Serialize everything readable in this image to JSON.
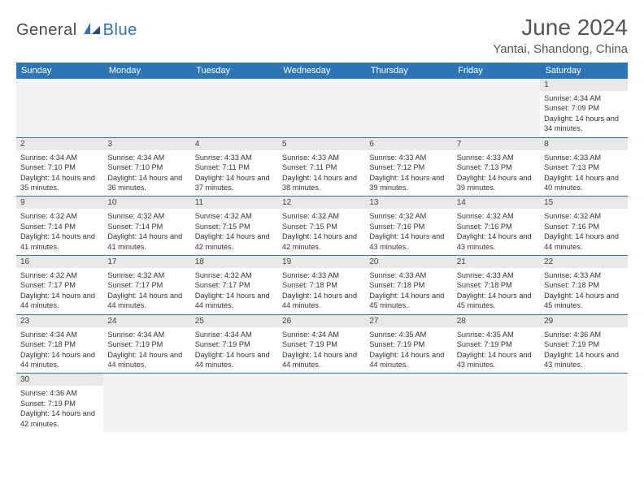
{
  "logo": {
    "text1": "General",
    "text2": "Blue"
  },
  "header": {
    "month": "June 2024",
    "location": "Yantai, Shandong, China"
  },
  "colors": {
    "accent": "#2e75b6",
    "header_bg": "#2e75b6",
    "daynum_bg": "#e8e8e8",
    "empty_bg": "#f2f2f2"
  },
  "weekdays": [
    "Sunday",
    "Monday",
    "Tuesday",
    "Wednesday",
    "Thursday",
    "Friday",
    "Saturday"
  ],
  "calendar": {
    "type": "table",
    "weeks": [
      [
        null,
        null,
        null,
        null,
        null,
        null,
        {
          "n": "1",
          "sunrise": "Sunrise: 4:34 AM",
          "sunset": "Sunset: 7:09 PM",
          "daylight": "Daylight: 14 hours and 34 minutes."
        }
      ],
      [
        {
          "n": "2",
          "sunrise": "Sunrise: 4:34 AM",
          "sunset": "Sunset: 7:10 PM",
          "daylight": "Daylight: 14 hours and 35 minutes."
        },
        {
          "n": "3",
          "sunrise": "Sunrise: 4:34 AM",
          "sunset": "Sunset: 7:10 PM",
          "daylight": "Daylight: 14 hours and 36 minutes."
        },
        {
          "n": "4",
          "sunrise": "Sunrise: 4:33 AM",
          "sunset": "Sunset: 7:11 PM",
          "daylight": "Daylight: 14 hours and 37 minutes."
        },
        {
          "n": "5",
          "sunrise": "Sunrise: 4:33 AM",
          "sunset": "Sunset: 7:11 PM",
          "daylight": "Daylight: 14 hours and 38 minutes."
        },
        {
          "n": "6",
          "sunrise": "Sunrise: 4:33 AM",
          "sunset": "Sunset: 7:12 PM",
          "daylight": "Daylight: 14 hours and 39 minutes."
        },
        {
          "n": "7",
          "sunrise": "Sunrise: 4:33 AM",
          "sunset": "Sunset: 7:13 PM",
          "daylight": "Daylight: 14 hours and 39 minutes."
        },
        {
          "n": "8",
          "sunrise": "Sunrise: 4:33 AM",
          "sunset": "Sunset: 7:13 PM",
          "daylight": "Daylight: 14 hours and 40 minutes."
        }
      ],
      [
        {
          "n": "9",
          "sunrise": "Sunrise: 4:32 AM",
          "sunset": "Sunset: 7:14 PM",
          "daylight": "Daylight: 14 hours and 41 minutes."
        },
        {
          "n": "10",
          "sunrise": "Sunrise: 4:32 AM",
          "sunset": "Sunset: 7:14 PM",
          "daylight": "Daylight: 14 hours and 41 minutes."
        },
        {
          "n": "11",
          "sunrise": "Sunrise: 4:32 AM",
          "sunset": "Sunset: 7:15 PM",
          "daylight": "Daylight: 14 hours and 42 minutes."
        },
        {
          "n": "12",
          "sunrise": "Sunrise: 4:32 AM",
          "sunset": "Sunset: 7:15 PM",
          "daylight": "Daylight: 14 hours and 42 minutes."
        },
        {
          "n": "13",
          "sunrise": "Sunrise: 4:32 AM",
          "sunset": "Sunset: 7:16 PM",
          "daylight": "Daylight: 14 hours and 43 minutes."
        },
        {
          "n": "14",
          "sunrise": "Sunrise: 4:32 AM",
          "sunset": "Sunset: 7:16 PM",
          "daylight": "Daylight: 14 hours and 43 minutes."
        },
        {
          "n": "15",
          "sunrise": "Sunrise: 4:32 AM",
          "sunset": "Sunset: 7:16 PM",
          "daylight": "Daylight: 14 hours and 44 minutes."
        }
      ],
      [
        {
          "n": "16",
          "sunrise": "Sunrise: 4:32 AM",
          "sunset": "Sunset: 7:17 PM",
          "daylight": "Daylight: 14 hours and 44 minutes."
        },
        {
          "n": "17",
          "sunrise": "Sunrise: 4:32 AM",
          "sunset": "Sunset: 7:17 PM",
          "daylight": "Daylight: 14 hours and 44 minutes."
        },
        {
          "n": "18",
          "sunrise": "Sunrise: 4:32 AM",
          "sunset": "Sunset: 7:17 PM",
          "daylight": "Daylight: 14 hours and 44 minutes."
        },
        {
          "n": "19",
          "sunrise": "Sunrise: 4:33 AM",
          "sunset": "Sunset: 7:18 PM",
          "daylight": "Daylight: 14 hours and 44 minutes."
        },
        {
          "n": "20",
          "sunrise": "Sunrise: 4:33 AM",
          "sunset": "Sunset: 7:18 PM",
          "daylight": "Daylight: 14 hours and 45 minutes."
        },
        {
          "n": "21",
          "sunrise": "Sunrise: 4:33 AM",
          "sunset": "Sunset: 7:18 PM",
          "daylight": "Daylight: 14 hours and 45 minutes."
        },
        {
          "n": "22",
          "sunrise": "Sunrise: 4:33 AM",
          "sunset": "Sunset: 7:18 PM",
          "daylight": "Daylight: 14 hours and 45 minutes."
        }
      ],
      [
        {
          "n": "23",
          "sunrise": "Sunrise: 4:34 AM",
          "sunset": "Sunset: 7:18 PM",
          "daylight": "Daylight: 14 hours and 44 minutes."
        },
        {
          "n": "24",
          "sunrise": "Sunrise: 4:34 AM",
          "sunset": "Sunset: 7:19 PM",
          "daylight": "Daylight: 14 hours and 44 minutes."
        },
        {
          "n": "25",
          "sunrise": "Sunrise: 4:34 AM",
          "sunset": "Sunset: 7:19 PM",
          "daylight": "Daylight: 14 hours and 44 minutes."
        },
        {
          "n": "26",
          "sunrise": "Sunrise: 4:34 AM",
          "sunset": "Sunset: 7:19 PM",
          "daylight": "Daylight: 14 hours and 44 minutes."
        },
        {
          "n": "27",
          "sunrise": "Sunrise: 4:35 AM",
          "sunset": "Sunset: 7:19 PM",
          "daylight": "Daylight: 14 hours and 44 minutes."
        },
        {
          "n": "28",
          "sunrise": "Sunrise: 4:35 AM",
          "sunset": "Sunset: 7:19 PM",
          "daylight": "Daylight: 14 hours and 43 minutes."
        },
        {
          "n": "29",
          "sunrise": "Sunrise: 4:36 AM",
          "sunset": "Sunset: 7:19 PM",
          "daylight": "Daylight: 14 hours and 43 minutes."
        }
      ],
      [
        {
          "n": "30",
          "sunrise": "Sunrise: 4:36 AM",
          "sunset": "Sunset: 7:19 PM",
          "daylight": "Daylight: 14 hours and 42 minutes."
        },
        null,
        null,
        null,
        null,
        null,
        null
      ]
    ]
  }
}
